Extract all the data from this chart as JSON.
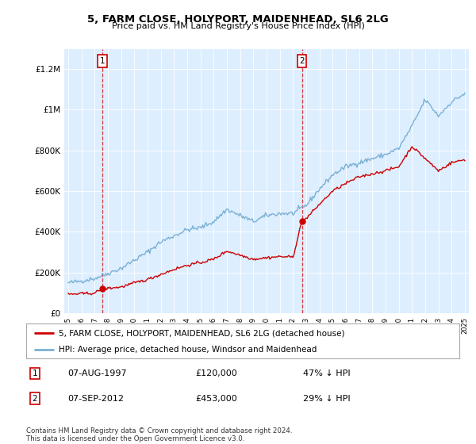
{
  "title": "5, FARM CLOSE, HOLYPORT, MAIDENHEAD, SL6 2LG",
  "subtitle": "Price paid vs. HM Land Registry's House Price Index (HPI)",
  "legend_property": "5, FARM CLOSE, HOLYPORT, MAIDENHEAD, SL6 2LG (detached house)",
  "legend_hpi": "HPI: Average price, detached house, Windsor and Maidenhead",
  "annotation1_date": "07-AUG-1997",
  "annotation1_price": "£120,000",
  "annotation1_pct": "47% ↓ HPI",
  "annotation2_date": "07-SEP-2012",
  "annotation2_price": "£453,000",
  "annotation2_pct": "29% ↓ HPI",
  "footnote1": "Contains HM Land Registry data © Crown copyright and database right 2024.",
  "footnote2": "This data is licensed under the Open Government Licence v3.0.",
  "property_color": "#cc0000",
  "hpi_color": "#7ab0d4",
  "background_color": "#ddeeff",
  "vline1_x": 1997.58,
  "vline2_x": 2012.67,
  "purchase1_x": 1997.58,
  "purchase1_y": 120000,
  "purchase2_x": 2012.67,
  "purchase2_y": 453000,
  "ylim": [
    0,
    1300000
  ],
  "xlim": [
    1994.7,
    2025.3
  ],
  "yticks": [
    0,
    200000,
    400000,
    600000,
    800000,
    1000000,
    1200000
  ],
  "ylabels": [
    "£0",
    "£200K",
    "£400K",
    "£600K",
    "£800K",
    "£1M",
    "£1.2M"
  ]
}
